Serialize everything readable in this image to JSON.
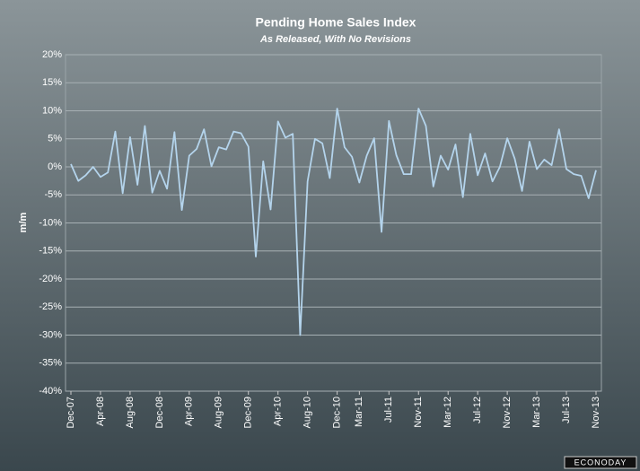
{
  "chart_data": {
    "type": "line",
    "title": "Pending Home Sales Index",
    "subtitle": "As Released, With No Revisions",
    "y_label": "m/m",
    "source": "ECONODAY",
    "categories": [
      "Dec-07",
      null,
      null,
      null,
      "Apr-08",
      null,
      null,
      null,
      "Aug-08",
      null,
      null,
      null,
      "Dec-08",
      null,
      null,
      null,
      "Apr-09",
      null,
      null,
      null,
      "Aug-09",
      null,
      null,
      null,
      "Dec-09",
      null,
      null,
      null,
      "Apr-10",
      null,
      null,
      null,
      "Aug-10",
      null,
      null,
      null,
      "Dec-10",
      null,
      null,
      "Mar-11",
      null,
      null,
      null,
      "Jul-11",
      null,
      null,
      null,
      "Nov-11",
      null,
      null,
      null,
      "Mar-12",
      null,
      null,
      null,
      "Jul-12",
      null,
      null,
      null,
      "Nov-12",
      null,
      null,
      null,
      "Mar-13",
      null,
      null,
      null,
      "Jul-13",
      null,
      null,
      null,
      "Nov-13"
    ],
    "series": [
      {
        "name": "Pending Home Sales",
        "color": "#b4d4ec",
        "values": [
          0.5,
          -2.5,
          -1.5,
          0,
          -1.8,
          -1,
          6.3,
          -4.7,
          5.3,
          -3.2,
          7.3,
          -4.6,
          -0.7,
          -3.9,
          6.2,
          -7.7,
          2,
          3.2,
          6.7,
          0.1,
          3.5,
          3.1,
          6.3,
          6,
          3.6,
          -16,
          1,
          -7.6,
          8.1,
          5.2,
          5.9,
          -30,
          -2.6,
          5,
          4.2,
          -2,
          10.4,
          3.5,
          1.8,
          -2.8,
          2,
          5.1,
          -11.6,
          8.2,
          2.1,
          -1.3,
          -1.3,
          10.4,
          7.3,
          -3.5,
          2,
          -0.5,
          4,
          -5.4,
          5.9,
          -1.5,
          2.4,
          -2.6,
          0,
          5.1,
          1.5,
          -4.3,
          4.5,
          -0.4,
          1.3,
          0.3,
          6.7,
          -0.4,
          -1.3,
          -1.6,
          -5.6,
          -0.6
        ]
      }
    ],
    "ylim": [
      -40,
      20
    ],
    "yticks": [
      {
        "value": -40,
        "label": "-40%"
      },
      {
        "value": -35,
        "label": "-35%"
      },
      {
        "value": -30,
        "label": "-30%"
      },
      {
        "value": -25,
        "label": "-25%"
      },
      {
        "value": -20,
        "label": "-20%"
      },
      {
        "value": -15,
        "label": "-15%"
      },
      {
        "value": -10,
        "label": "-10%"
      },
      {
        "value": -5,
        "label": "-5%"
      },
      {
        "value": 0,
        "label": "0%"
      },
      {
        "value": 5,
        "label": "5%"
      },
      {
        "value": 10,
        "label": "10%"
      },
      {
        "value": 15,
        "label": "15%"
      },
      {
        "value": 20,
        "label": "20%"
      }
    ],
    "grid": true
  }
}
